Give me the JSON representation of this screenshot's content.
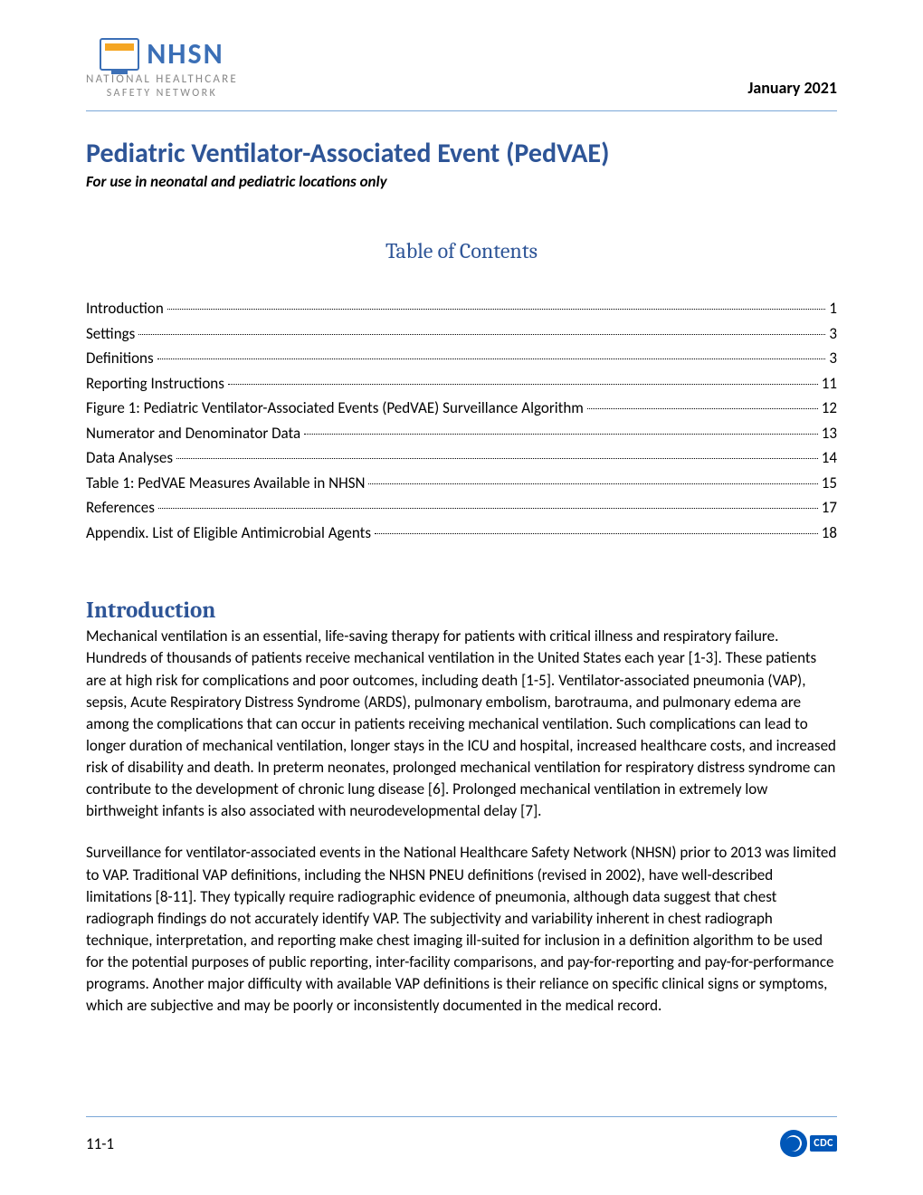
{
  "colors": {
    "heading_blue": "#2e5597",
    "logo_blue": "#3b6fb6",
    "rule_blue": "#7ba7d7",
    "cdc_blue": "#0057b8",
    "body_text": "#000000",
    "background": "#ffffff",
    "logo_gray": "#888888"
  },
  "typography": {
    "title_fontsize": 30,
    "toc_heading_fontsize": 24,
    "section_heading_fontsize": 25,
    "body_fontsize": 17,
    "font_family": "Calibri"
  },
  "header": {
    "logo_text": "NHSN",
    "logo_sub1": "NATIONAL HEALTHCARE",
    "logo_sub2": "SAFETY NETWORK",
    "date": "January 2021"
  },
  "title": "Pediatric Ventilator-Associated Event (PedVAE)",
  "subtitle": "For use in neonatal and pediatric locations only",
  "toc_heading": "Table of Contents",
  "toc": [
    {
      "label": "Introduction",
      "page": "1"
    },
    {
      "label": "Settings",
      "page": "3"
    },
    {
      "label": "Definitions",
      "page": "3"
    },
    {
      "label": "Reporting Instructions",
      "page": "11"
    },
    {
      "label": "Figure 1: Pediatric Ventilator-Associated Events (PedVAE) Surveillance Algorithm",
      "page": "12"
    },
    {
      "label": "Numerator and Denominator Data",
      "page": "13"
    },
    {
      "label": "Data Analyses",
      "page": "14"
    },
    {
      "label": "Table 1: PedVAE Measures Available in NHSN",
      "page": "15"
    },
    {
      "label": "References",
      "page": "17"
    },
    {
      "label": "Appendix. List of Eligible Antimicrobial Agents",
      "page": "18"
    }
  ],
  "section_heading": "Introduction",
  "paragraph1": "Mechanical ventilation is an essential, life-saving therapy for patients with critical illness and respiratory failure. Hundreds of thousands of patients receive mechanical ventilation in the United States each year [1-3]. These patients are at high risk for complications and poor outcomes, including death [1-5]. Ventilator-associated pneumonia (VAP), sepsis, Acute Respiratory Distress Syndrome (ARDS), pulmonary embolism, barotrauma, and pulmonary edema are among the complications that can occur in patients receiving mechanical ventilation. Such complications can lead to longer duration of mechanical ventilation, longer stays in the ICU and hospital, increased healthcare costs, and increased risk of disability and death. In preterm neonates, prolonged mechanical ventilation for respiratory distress syndrome can contribute to the development of chronic lung disease [6]. Prolonged mechanical ventilation in extremely low birthweight infants is also associated with neurodevelopmental delay [7].",
  "paragraph2": "Surveillance for ventilator-associated events in the National Healthcare Safety Network (NHSN) prior to 2013 was limited to VAP. Traditional VAP definitions, including the NHSN PNEU definitions (revised in 2002), have well-described limitations [8-11]. They typically require radiographic evidence of pneumonia, although data suggest that chest radiograph findings do not accurately identify VAP. The subjectivity and variability inherent in chest radiograph technique, interpretation, and reporting make chest imaging ill-suited for inclusion in a definition algorithm to be used for the potential purposes of public reporting, inter-facility comparisons, and pay-for-reporting and pay-for-performance programs. Another major difficulty with available VAP definitions is their reliance on specific clinical signs or symptoms, which are subjective and may be poorly or inconsistently documented in the medical record.",
  "footer": {
    "page_number": "11-1",
    "cdc_label": "CDC"
  }
}
